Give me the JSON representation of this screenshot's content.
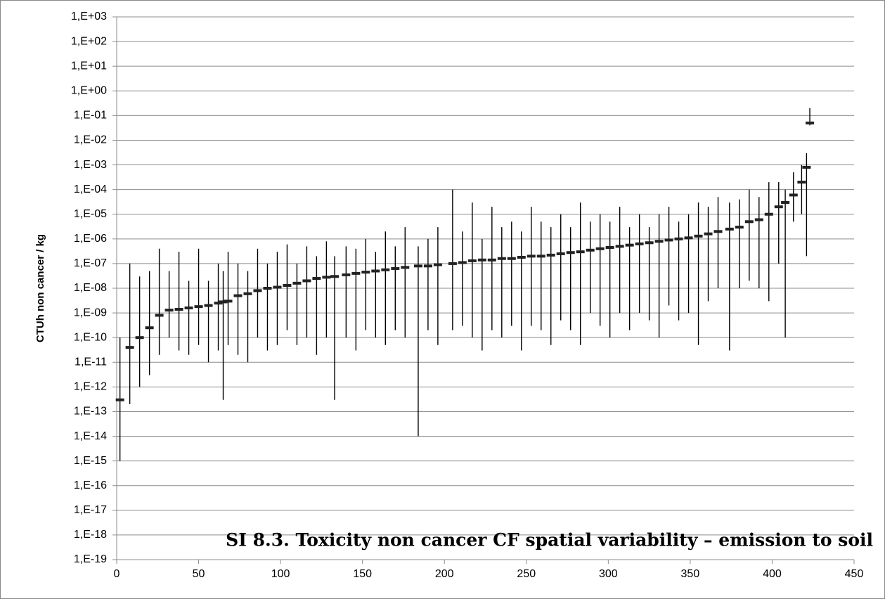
{
  "chart_data": {
    "type": "errorbar",
    "title": "SI 8.3. Toxicity non cancer CF spatial variability – emission to soil",
    "y_label": "CTUh non cancer / kg",
    "log_scale_y": true,
    "grid": true,
    "color": "#000000",
    "marker_color": "#222222",
    "xlim": [
      0,
      450
    ],
    "xticks": [
      0,
      50,
      100,
      150,
      200,
      250,
      300,
      350,
      400,
      450
    ],
    "ylim": [
      1e-19,
      1000
    ],
    "yticks": [
      {
        "value": 1e-19,
        "label": "1,E-19"
      },
      {
        "value": 1e-18,
        "label": "1,E-18"
      },
      {
        "value": 1e-17,
        "label": "1,E-17"
      },
      {
        "value": 1e-16,
        "label": "1,E-16"
      },
      {
        "value": 1e-15,
        "label": "1,E-15"
      },
      {
        "value": 1e-14,
        "label": "1,E-14"
      },
      {
        "value": 1e-13,
        "label": "1,E-13"
      },
      {
        "value": 1e-12,
        "label": "1,E-12"
      },
      {
        "value": 1e-11,
        "label": "1,E-11"
      },
      {
        "value": 1e-10,
        "label": "1,E-10"
      },
      {
        "value": 1e-09,
        "label": "1,E-09"
      },
      {
        "value": 1e-08,
        "label": "1,E-08"
      },
      {
        "value": 1e-07,
        "label": "1,E-07"
      },
      {
        "value": 1e-06,
        "label": "1,E-06"
      },
      {
        "value": 1e-05,
        "label": "1,E-05"
      },
      {
        "value": 0.0001,
        "label": "1,E-04"
      },
      {
        "value": 0.001,
        "label": "1,E-03"
      },
      {
        "value": 0.01,
        "label": "1,E-02"
      },
      {
        "value": 0.1,
        "label": "1,E-01"
      },
      {
        "value": 1,
        "label": "1,E+00"
      },
      {
        "value": 10,
        "label": "1,E+01"
      },
      {
        "value": 100,
        "label": "1,E+02"
      },
      {
        "value": 1000,
        "label": "1,E+03"
      }
    ],
    "x": [
      2,
      8,
      14,
      20,
      26,
      32,
      38,
      44,
      50,
      56,
      62,
      65,
      68,
      74,
      80,
      86,
      92,
      98,
      104,
      110,
      116,
      122,
      128,
      133,
      140,
      146,
      152,
      158,
      164,
      170,
      176,
      184,
      190,
      196,
      205,
      211,
      217,
      223,
      229,
      235,
      241,
      247,
      253,
      259,
      265,
      271,
      277,
      283,
      289,
      295,
      301,
      307,
      313,
      319,
      325,
      331,
      337,
      343,
      349,
      355,
      361,
      367,
      374,
      380,
      386,
      392,
      398,
      404,
      408,
      413,
      418,
      421,
      423
    ],
    "values": [
      3e-13,
      4e-11,
      1e-10,
      2.5e-10,
      8e-10,
      1.3e-09,
      1.4e-09,
      1.6e-09,
      1.8e-09,
      2e-09,
      2.5e-09,
      2.8e-09,
      3e-09,
      5e-09,
      6e-09,
      8e-09,
      1e-08,
      1.1e-08,
      1.3e-08,
      1.6e-08,
      2e-08,
      2.5e-08,
      2.8e-08,
      3e-08,
      3.5e-08,
      4e-08,
      4.5e-08,
      5e-08,
      5.6e-08,
      6.3e-08,
      7e-08,
      8e-08,
      8e-08,
      9e-08,
      1e-07,
      1.1e-07,
      1.3e-07,
      1.4e-07,
      1.4e-07,
      1.6e-07,
      1.6e-07,
      1.8e-07,
      2e-07,
      2e-07,
      2.2e-07,
      2.5e-07,
      2.8e-07,
      3e-07,
      3.5e-07,
      4e-07,
      4.5e-07,
      5e-07,
      5.6e-07,
      6.3e-07,
      7e-07,
      8e-07,
      9e-07,
      1e-06,
      1.1e-06,
      1.3e-06,
      1.6e-06,
      2e-06,
      2.5e-06,
      3e-06,
      5e-06,
      6e-06,
      1e-05,
      2e-05,
      3e-05,
      6e-05,
      0.0002,
      0.0008,
      0.05
    ],
    "lows": [
      1e-15,
      2e-13,
      1e-12,
      3e-12,
      2e-11,
      1e-10,
      3e-11,
      2e-11,
      5e-11,
      1e-11,
      3e-11,
      3e-13,
      5e-11,
      2e-11,
      1e-11,
      1e-10,
      3e-11,
      5e-11,
      2e-10,
      5e-11,
      1e-10,
      2e-11,
      1e-10,
      3e-13,
      1e-10,
      3e-11,
      2e-10,
      1e-10,
      5e-11,
      2e-10,
      1e-10,
      1e-14,
      2e-10,
      5e-11,
      2e-10,
      3e-10,
      1e-10,
      3e-11,
      2e-10,
      1e-10,
      3e-10,
      3e-11,
      3e-10,
      2e-10,
      5e-11,
      5e-10,
      2e-10,
      5e-11,
      1e-09,
      3e-10,
      1e-10,
      1e-09,
      2e-10,
      1e-09,
      5e-10,
      1e-10,
      2e-09,
      5e-10,
      1e-09,
      5e-11,
      3e-09,
      1e-08,
      3e-11,
      1e-08,
      2e-08,
      1e-08,
      3e-09,
      1e-07,
      1e-10,
      5e-06,
      1e-05,
      2e-07,
      0.04
    ],
    "highs": [
      1e-10,
      1e-07,
      3e-08,
      5e-08,
      4e-07,
      5e-08,
      3e-07,
      2e-08,
      4e-07,
      2e-08,
      1e-07,
      5e-08,
      3e-07,
      1e-07,
      5e-08,
      4e-07,
      1e-07,
      3e-07,
      6e-07,
      1e-07,
      5e-07,
      2e-07,
      8e-07,
      2e-07,
      5e-07,
      4e-07,
      1e-06,
      3e-07,
      2e-06,
      5e-07,
      3e-06,
      5e-07,
      1e-06,
      3e-06,
      0.0001,
      2e-06,
      3e-05,
      1e-06,
      2e-05,
      3e-06,
      5e-06,
      2e-06,
      2e-05,
      5e-06,
      3e-06,
      1e-05,
      3e-06,
      3e-05,
      5e-06,
      1e-05,
      5e-06,
      2e-05,
      3e-06,
      1e-05,
      3e-06,
      1e-05,
      2e-05,
      5e-06,
      1e-05,
      3e-05,
      2e-05,
      5e-05,
      3e-05,
      4e-05,
      0.0001,
      5e-05,
      0.0002,
      0.0002,
      0.0001,
      0.0005,
      0.001,
      0.003,
      0.2
    ]
  }
}
